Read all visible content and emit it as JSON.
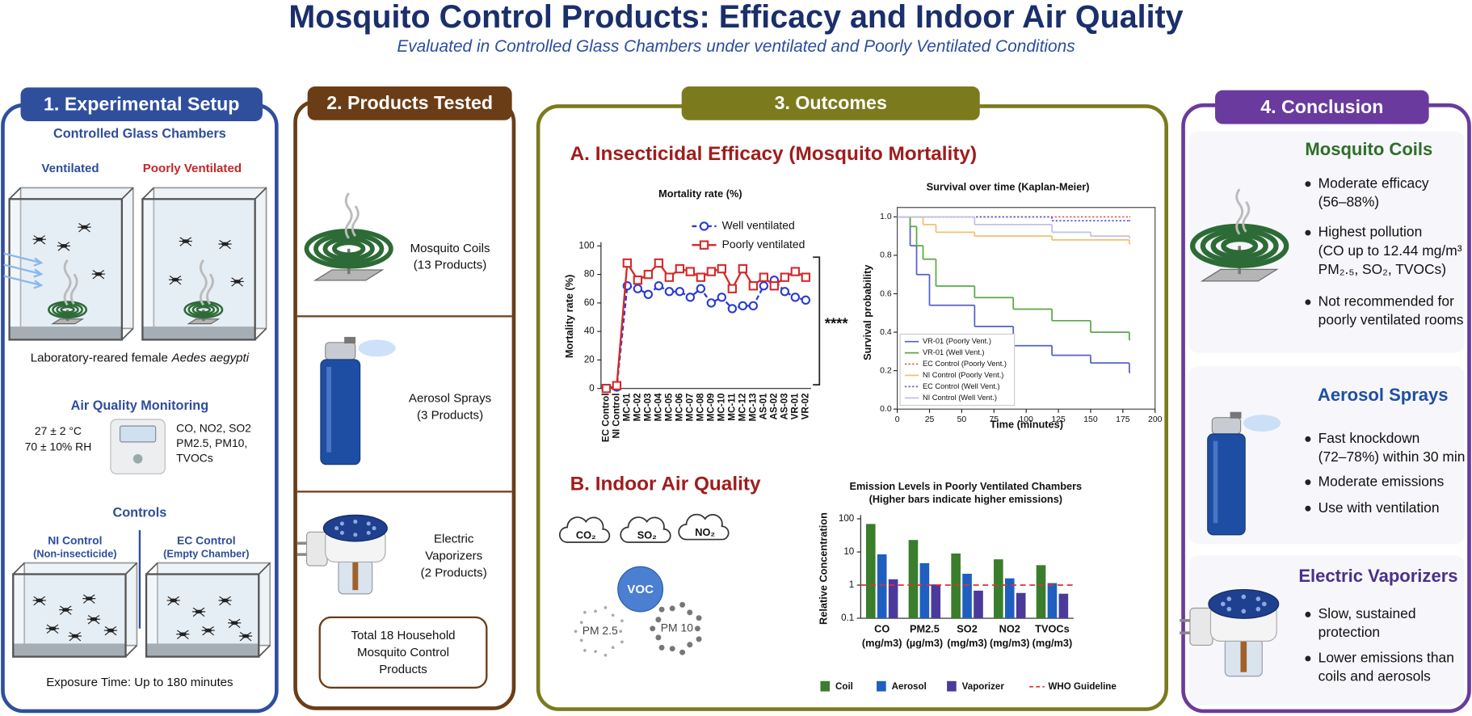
{
  "header": {
    "title": "Mosquito Control Products: Efficacy and Indoor Air Quality",
    "subtitle": "Evaluated in Controlled Glass Chambers under ventilated and Poorly Ventilated Conditions"
  },
  "setup": {
    "heading": "1. Experimental Setup",
    "chambers_title": "Controlled Glass Chambers",
    "ventilated": "Ventilated",
    "poorly_ventilated": "Poorly Ventilated",
    "subjects": "Laboratory-reared female",
    "species": "Aedes aegypti",
    "monitoring_title": "Air Quality Monitoring",
    "conditions": [
      "27 ± 2 °C",
      "70 ± 10% RH"
    ],
    "pollutants": [
      "CO, NO2, SO2",
      "PM2.5, PM10,",
      "TVOCs"
    ],
    "controls_title": "Controls",
    "controls": [
      {
        "name": "NI Control",
        "note": "(Non-insecticide)"
      },
      {
        "name": "EC Control",
        "note": "(Empty Chamber)"
      }
    ],
    "exposure": "Exposure Time: Up to 180 minutes"
  },
  "products": {
    "heading": "2. Products Tested",
    "items": [
      {
        "lines": [
          "Mosquito Coils",
          "(13 Products)"
        ]
      },
      {
        "lines": [
          "Aerosol Sprays",
          "(3 Products)"
        ]
      },
      {
        "lines": [
          "Electric",
          "Vaporizers",
          "(2 Products)"
        ]
      }
    ],
    "total": [
      "Total 18 Household",
      "Mosquito Control",
      "Products"
    ]
  },
  "outcomes": {
    "heading": "3. Outcomes",
    "section_a": "A. Insecticidal Efficacy (Mosquito Mortality)",
    "section_b": "B. Indoor Air Quality",
    "pollutant_icons": [
      "CO₂",
      "SO₂",
      "NO₂",
      "VOC",
      "PM 2.5",
      "PM 10"
    ]
  },
  "conclusion": {
    "heading": "4. Conclusion",
    "sections": [
      {
        "title": "Mosquito Coils",
        "bullets": [
          [
            "Moderate efficacy",
            "(56–88%)"
          ],
          [
            "Highest pollution",
            "(CO up to 12.44 mg/m³",
            "PM₂.₅, SO₂, TVOCs)"
          ],
          [
            "Not recommended for",
            "poorly ventilated rooms"
          ]
        ]
      },
      {
        "title": "Aerosol Sprays",
        "bullets": [
          [
            "Fast knockdown",
            "(72–78%) within 30 min"
          ],
          [
            "Moderate emissions"
          ],
          [
            "Use with ventilation"
          ]
        ]
      },
      {
        "title": "Electric Vaporizers",
        "bullets": [
          [
            "Slow, sustained",
            "protection"
          ],
          [
            "Lower emissions than",
            "coils and aerosols"
          ]
        ]
      }
    ]
  },
  "chart_data": [
    {
      "type": "line",
      "title": "Mortality rate (%)",
      "y_label": "Mortality rate (%)",
      "categories": [
        "EC Control",
        "NI Control",
        "MC-01",
        "MC-02",
        "MC-03",
        "MC-04",
        "MC-05",
        "MC-06",
        "MC-07",
        "MC-08",
        "MC-09",
        "MC-10",
        "MC-11",
        "MC-12",
        "MC-13",
        "AS-01",
        "AS-02",
        "AS-03",
        "VR-01",
        "VR-02"
      ],
      "series": [
        {
          "name": "Well ventilated",
          "color": "#2a3bd1",
          "style": "dashed",
          "marker": "circle",
          "values": [
            0,
            1,
            72,
            70,
            66,
            72,
            68,
            68,
            64,
            70,
            60,
            64,
            56,
            58,
            58,
            72,
            76,
            68,
            64,
            62
          ]
        },
        {
          "name": "Poorly ventilated",
          "color": "#d42a2a",
          "style": "solid",
          "marker": "square",
          "values": [
            0,
            2,
            88,
            76,
            80,
            88,
            78,
            84,
            82,
            78,
            82,
            84,
            70,
            84,
            72,
            78,
            72,
            78,
            82,
            78
          ]
        }
      ],
      "ylim": [
        0,
        100
      ],
      "yticks": [
        0,
        20,
        40,
        60,
        80,
        100
      ],
      "annotation": "****"
    },
    {
      "type": "step",
      "title": "Survival over time (Kaplan-Meier)",
      "x_label": "Time (minutes)",
      "y_label": "Survival probability",
      "xlim": [
        0,
        200
      ],
      "xticks": [
        0,
        25,
        50,
        75,
        100,
        125,
        150,
        175,
        200
      ],
      "ylim": [
        0,
        1
      ],
      "yticks": [
        {
          "value": 0,
          "label": "0.0"
        },
        0.2,
        0.4,
        0.6,
        0.8,
        {
          "value": 1,
          "label": "1.0"
        }
      ],
      "series": [
        {
          "name": "VR-01 (Poorly Vent.)",
          "color": "#5560c8",
          "style": "solid",
          "x": [
            0,
            10,
            15,
            25,
            60,
            90,
            120,
            150,
            180
          ],
          "values": [
            1,
            0.85,
            0.7,
            0.54,
            0.43,
            0.33,
            0.28,
            0.24,
            0.19
          ]
        },
        {
          "name": "VR-01 (Well Vent.)",
          "color": "#5aa845",
          "style": "solid",
          "x": [
            0,
            10,
            15,
            20,
            30,
            60,
            90,
            120,
            150,
            180
          ],
          "values": [
            1,
            0.95,
            0.85,
            0.78,
            0.64,
            0.58,
            0.52,
            0.46,
            0.4,
            0.36
          ]
        },
        {
          "name": "EC Control (Poorly Vent.)",
          "color": "#e06060",
          "style": "dotted",
          "x": [
            0,
            180
          ],
          "values": [
            1,
            1
          ]
        },
        {
          "name": "NI Control (Poorly Vent.)",
          "color": "#f0c070",
          "style": "solid",
          "x": [
            0,
            20,
            30,
            60,
            120,
            180
          ],
          "values": [
            1,
            0.96,
            0.92,
            0.9,
            0.88,
            0.86
          ]
        },
        {
          "name": "EC Control (Well Vent.)",
          "color": "#6a5acd",
          "style": "dotted",
          "x": [
            0,
            120,
            180
          ],
          "values": [
            1,
            0.98,
            0.98
          ]
        },
        {
          "name": "NI Control (Well Vent.)",
          "color": "#c0c0e8",
          "style": "solid",
          "x": [
            0,
            60,
            120,
            150,
            180
          ],
          "values": [
            1,
            0.96,
            0.92,
            0.9,
            0.89
          ]
        }
      ]
    },
    {
      "type": "bar",
      "title": "Emission Levels in Poorly Ventilated Chambers",
      "subtitle": "(Higher bars indicate higher emissions)",
      "y_label": "Relative Concentration",
      "log_scale": true,
      "categories": [
        "CO",
        "PM2.5",
        "SO2",
        "NO2",
        "TVOCs"
      ],
      "category_units": [
        "(mg/m3)",
        "(µg/m3)",
        "(mg/m3)",
        "(mg/m3)",
        "(mg/m3)"
      ],
      "series": [
        {
          "name": "Coil",
          "color": "#3a7d2c",
          "values": [
            70,
            23,
            9,
            6,
            4
          ]
        },
        {
          "name": "Aerosol",
          "color": "#1f5fbf",
          "values": [
            8.5,
            4.6,
            2.2,
            1.6,
            1.15
          ]
        },
        {
          "name": "Vaporizer",
          "color": "#4b3a9b",
          "values": [
            1.5,
            1.05,
            0.68,
            0.58,
            0.55
          ]
        }
      ],
      "reference": {
        "name": "WHO Guideline",
        "value": 1,
        "color": "#e03030"
      },
      "ylim": [
        0.1,
        100
      ],
      "yticks": [
        0.1,
        1,
        10,
        100
      ]
    }
  ]
}
